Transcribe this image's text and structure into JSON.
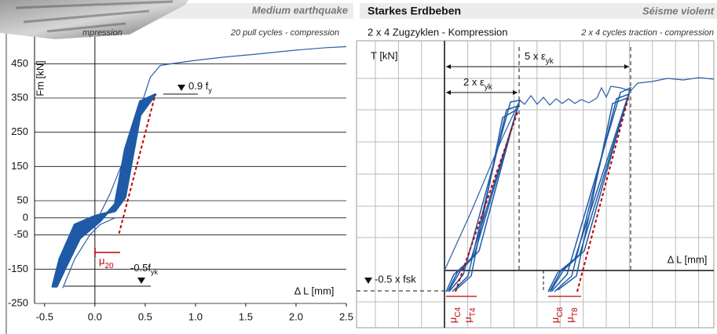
{
  "chart_data": {
    "type": "line",
    "title": "Medium earthquake",
    "subtitle": "20 pull cycles - compression",
    "hidden_subtitle": "mpression",
    "ylabel": "Fm [kN]",
    "xlabel": "Δ L [mm]",
    "xlim": [
      -0.6,
      2.5
    ],
    "ylim": [
      -250,
      500
    ],
    "xticks": [
      -0.5,
      {
        "value": 0,
        "label": "0.0"
      },
      0.5,
      {
        "value": 1,
        "label": "1.0"
      },
      1.5,
      {
        "value": 2,
        "label": "2.0"
      },
      2.5
    ],
    "yticks": [
      450,
      350,
      250,
      150,
      50,
      0,
      -50,
      -150,
      -250
    ],
    "grid": true,
    "annotations": [
      {
        "text": "0.9 f",
        "sub": "y"
      },
      {
        "text": "μ",
        "sub": "20"
      },
      {
        "text": "-0.5f",
        "sub": "yk"
      }
    ],
    "series": [
      {
        "color": "#2b5ea7",
        "width": 1.2,
        "x": [
          0,
          0.05,
          0.15,
          0.3,
          0.45,
          0.55,
          0.65,
          0.8,
          1.0,
          1.3,
          1.6,
          2.0,
          2.3,
          2.5
        ],
        "values": [
          0,
          10,
          70,
          180,
          320,
          410,
          445,
          452,
          460,
          470,
          478,
          490,
          497,
          500
        ]
      },
      {
        "color": "#2b5ea7",
        "width": 1.2,
        "x": [
          -0.32,
          -0.2,
          -0.05,
          0.05,
          0.2
        ],
        "values": [
          -205,
          -120,
          -50,
          -20,
          0
        ]
      },
      {
        "color": "#1f5aa6",
        "width": 3,
        "filled": true,
        "x": [
          -0.42,
          -0.35,
          -0.2,
          0,
          0.2,
          0.3,
          0.45,
          0.6,
          0.45,
          0.3,
          0.2,
          0.05,
          -0.15,
          -0.3,
          -0.38
        ],
        "values": [
          -200,
          -120,
          -20,
          5,
          20,
          60,
          300,
          360,
          340,
          200,
          40,
          -10,
          -60,
          -150,
          -200
        ]
      },
      {
        "color": "#c00000",
        "width": 2,
        "dashed": true,
        "x": [
          0.24,
          0.6
        ],
        "values": [
          -46,
          360
        ]
      }
    ]
  },
  "right_panel": {
    "title": "Starkes Erdbeben",
    "title_fr": "Séisme violent",
    "subtitle": "2 x 4 Zugzyklen - Kompression",
    "subtitle_fr": "2 x 4 cycles traction - compression",
    "ylabel": "T [kN]",
    "xlabel": "Δ L [mm]",
    "annotations": [
      {
        "text": "5 x ε",
        "sub": "yk"
      },
      {
        "text": "2 x ε",
        "sub": "yk"
      },
      {
        "text": "-0.5 x fsk"
      }
    ],
    "markers": [
      {
        "text": "μ",
        "sub": "C4"
      },
      {
        "text": "μ",
        "sub": "T4"
      },
      {
        "text": "μ",
        "sub": "C8"
      },
      {
        "text": "μ",
        "sub": "T8"
      }
    ]
  }
}
